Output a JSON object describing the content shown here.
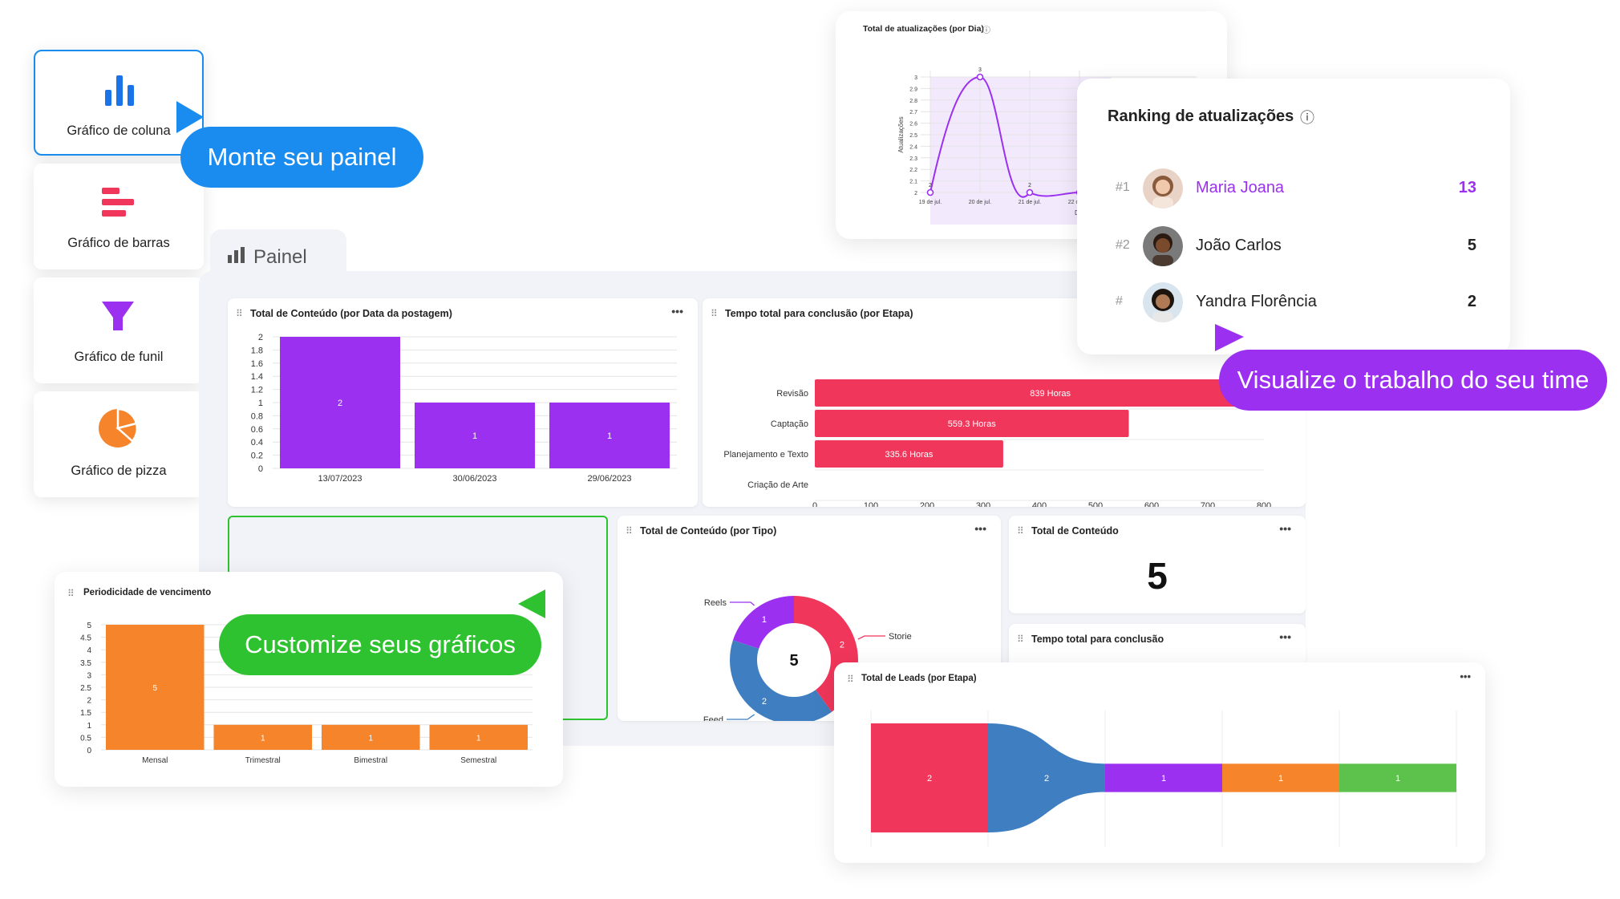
{
  "chart_types": [
    {
      "label": "Gráfico de coluna",
      "icon": "column-chart-icon",
      "color": "#1a73e8"
    },
    {
      "label": "Gráfico de barras",
      "icon": "bar-chart-icon",
      "color": "#f0365a"
    },
    {
      "label": "Gráfico de funil",
      "icon": "funnel-chart-icon",
      "color": "#9b30f0"
    },
    {
      "label": "Gráfico de pizza",
      "icon": "pie-chart-icon",
      "color": "#f5842a"
    }
  ],
  "chips": {
    "monte": "Monte seu painel",
    "visualize": "Visualize o trabalho do seu time",
    "customize": "Customize seus gráficos"
  },
  "panel": {
    "title": "Painel"
  },
  "colors": {
    "purple": "#9b30f0",
    "red": "#f0365a",
    "blue": "#3f7fc1",
    "orange": "#f5842a",
    "green": "#2fc230",
    "lightblue": "#1a8cf0"
  },
  "ranking": {
    "title": "Ranking de atualizações",
    "rows": [
      {
        "pos": "#1",
        "name": "Maria Joana",
        "count": "13"
      },
      {
        "pos": "#2",
        "name": "João Carlos",
        "count": "5"
      },
      {
        "pos": "#",
        "name": "Yandra Florência",
        "count": "2"
      }
    ]
  },
  "widgets": {
    "total_conteudo_data": "Total de Conteúdo (por Data da postagem)",
    "tempo_total_etapa": "Tempo total para conclusão (por Etapa)",
    "total_conteudo_tipo": "Total de Conteúdo (por Tipo)",
    "total_conteudo": "Total de Conteúdo",
    "total_conteudo_value": "5",
    "tempo_total": "Tempo total para conclusão",
    "total_leads": "Total de Leads (por Etapa)",
    "periodicidade": "Periodicidade de vencimento",
    "atualizacoes": "Total de atualizações (por Dia)"
  },
  "chart_data": [
    {
      "type": "bar",
      "title": "Total de Conteúdo (por Data da postagem)",
      "categories": [
        "13/07/2023",
        "30/06/2023",
        "29/06/2023"
      ],
      "values": [
        2,
        1,
        1
      ],
      "yticks": [
        "0",
        "0.2",
        "0.4",
        "0.6",
        "0.8",
        "1",
        "1.2",
        "1.4",
        "1.6",
        "1.8",
        "2"
      ],
      "ylim": [
        0,
        2
      ],
      "color": "#9b30f0"
    },
    {
      "type": "bar",
      "orientation": "horizontal",
      "title": "Tempo total para conclusão (por Etapa)",
      "categories": [
        "Revisão",
        "Captação",
        "Planejamento e Texto",
        "Criação de Arte"
      ],
      "values": [
        839,
        559.3,
        335.6,
        0
      ],
      "labels": [
        "839 Horas",
        "559.3 Horas",
        "335.6 Horas",
        ""
      ],
      "xticks": [
        "0",
        "100",
        "200",
        "300",
        "400",
        "500",
        "600",
        "700",
        "800"
      ],
      "xlim": [
        0,
        800
      ],
      "color": "#f0365a"
    },
    {
      "type": "pie",
      "title": "Total de Conteúdo (por Tipo)",
      "center_label": "5",
      "slices": [
        {
          "name": "Storie",
          "value": 2,
          "color": "#f0365a"
        },
        {
          "name": "Feed",
          "value": 2,
          "color": "#3f7fc1"
        },
        {
          "name": "Reels",
          "value": 1,
          "color": "#9b30f0"
        }
      ]
    },
    {
      "type": "bar",
      "title": "Periodicidade de vencimento",
      "categories": [
        "Mensal",
        "Trimestral",
        "Bimestral",
        "Semestral"
      ],
      "values": [
        5,
        1,
        1,
        1
      ],
      "yticks": [
        "0",
        "0.5",
        "1",
        "1.5",
        "2",
        "2.5",
        "3",
        "3.5",
        "4",
        "4.5",
        "5"
      ],
      "ylim": [
        0,
        5
      ],
      "color": "#f5842a"
    },
    {
      "type": "line",
      "title": "Total de atualizações (por Dia)",
      "xlabel": "Dia",
      "ylabel": "Atualizações",
      "categories": [
        "19 de jul.",
        "20 de jul.",
        "21 de jul.",
        "22 de jul."
      ],
      "values": [
        2,
        3,
        2,
        2
      ],
      "yticks": [
        "2",
        "2.1",
        "2.2",
        "2.3",
        "2.4",
        "2.5",
        "2.6",
        "2.7",
        "2.8",
        "2.9",
        "3"
      ],
      "ylim": [
        2,
        3
      ],
      "color": "#9b30f0"
    },
    {
      "type": "funnel",
      "title": "Total de Leads (por Etapa)",
      "values": [
        2,
        2,
        1,
        1,
        1
      ],
      "colors": [
        "#f0365a",
        "#3f7fc1",
        "#9b30f0",
        "#f5842a",
        "#5cc24c"
      ]
    }
  ]
}
